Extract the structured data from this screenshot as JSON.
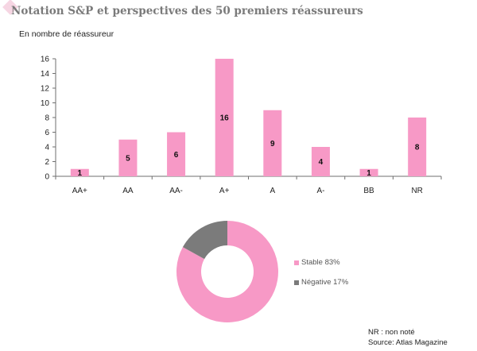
{
  "title": "Notation S&P et perspectives des 50 premiers réassureurs",
  "colors": {
    "bar": "#f799c6",
    "stable": "#f799c6",
    "negative": "#7b7b7b",
    "axis": "#6f6f6f"
  },
  "chart_data": [
    {
      "type": "bar",
      "title": "Notation S&P et perspectives des 50 premiers réassureurs",
      "ylabel": "En nombre de réassureur",
      "xlabel": "",
      "categories": [
        "AA+",
        "AA",
        "AA-",
        "A+",
        "A",
        "A-",
        "BB",
        "NR"
      ],
      "values": [
        1,
        5,
        6,
        16,
        9,
        4,
        1,
        8
      ],
      "ylim": [
        0,
        16
      ],
      "yticks": [
        0,
        2,
        4,
        6,
        8,
        10,
        12,
        14,
        16
      ],
      "grid": false,
      "data_labels": true
    },
    {
      "type": "pie",
      "donut": true,
      "categories": [
        "Stable",
        "Négative"
      ],
      "values": [
        83,
        17
      ],
      "legend_labels": [
        "Stable 83%",
        "Négative 17%"
      ],
      "legend_position": "right"
    }
  ],
  "notes": {
    "nr": "NR : non noté",
    "source": "Source: Atlas Magazine"
  }
}
